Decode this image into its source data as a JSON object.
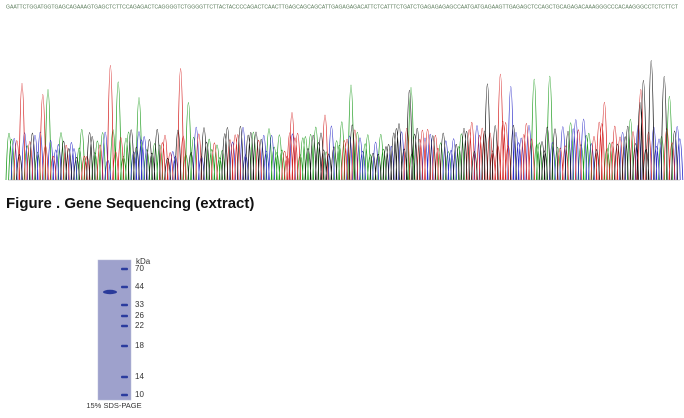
{
  "sequence": "GAATTCTGGATGGTGAGCAGAAAGTGAGCTCTTCCAGAGACTCAGGGGTCTGGGGTTCTTACTACCCCAGACTCAACTTGAGCAGCAGCATTGAGAGAGACATTCTCATTTCTGATCTGAGAGAGAGCCAATGATGAGAAGTTGAGAGCTCCAGCTGCAGAGACAAAGGGCCCACAAGGGCCTCTCTTCT",
  "figure_caption": "Figure . Gene Sequencing (extract)",
  "gel": {
    "unit": "kDa",
    "markers": [
      "70",
      "44",
      "33",
      "26",
      "22",
      "18",
      "14",
      "10"
    ],
    "caption": "15% SDS-PAGE"
  }
}
